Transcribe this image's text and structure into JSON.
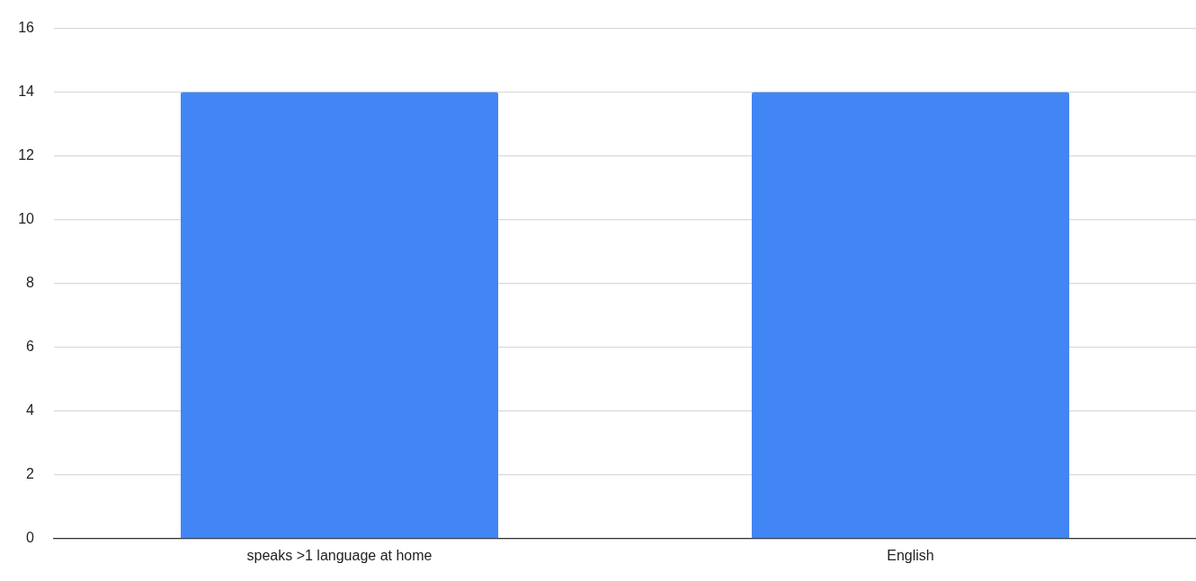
{
  "chart_data": {
    "type": "bar",
    "categories": [
      "speaks >1 language at home",
      "English"
    ],
    "values": [
      14,
      14
    ],
    "color": "#4285f4",
    "ylim": [
      0,
      16
    ],
    "yticks": [
      0,
      2,
      4,
      6,
      8,
      10,
      12,
      14,
      16
    ],
    "grid": "y",
    "legend": false
  }
}
